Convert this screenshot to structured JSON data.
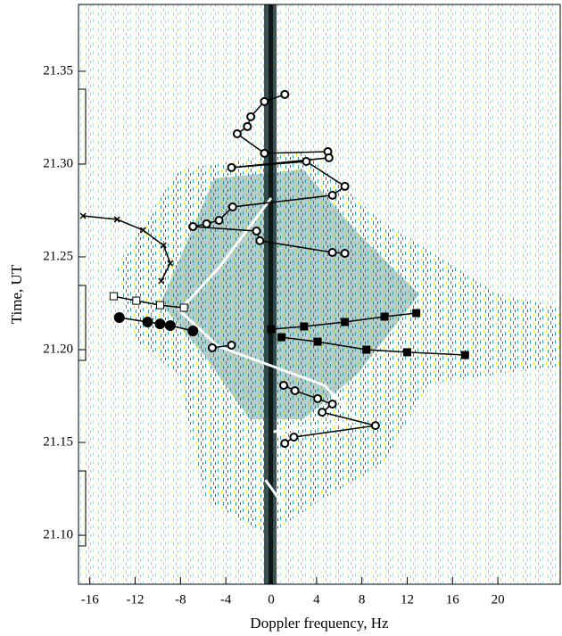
{
  "chart_data": {
    "type": "line",
    "xlabel": "Doppler frequency, Hz",
    "ylabel": "Time, UT",
    "xlim": [
      -17,
      25.5
    ],
    "ylim": [
      21.0736,
      21.386
    ],
    "xticks": [
      -16,
      -12,
      -8,
      -4,
      0,
      4,
      8,
      12,
      16,
      20
    ],
    "yticks": [
      {
        "value": 21.1,
        "label": "21.10"
      },
      21.15,
      {
        "value": 21.2,
        "label": "21.20"
      },
      21.25,
      {
        "value": 21.3,
        "label": "21.30"
      },
      21.35
    ],
    "series": [
      {
        "color": "#ffffff",
        "marker": "none",
        "width": 3,
        "x": [
          0,
          -4.6,
          -8.1,
          -4.7,
          4.7,
          7.6,
          0.2,
          null,
          -0.5,
          1.3
        ],
        "values": [
          21.2817,
          21.2442,
          21.2212,
          21.2019,
          21.1808,
          21.1615,
          21.1558,
          null,
          21.1298,
          21.1144
        ]
      },
      {
        "color": "#000000",
        "marker": "circle-open",
        "width": 1.5,
        "x": [
          1.2,
          -0.6,
          -1.8,
          -2.1,
          -3.0,
          -0.6,
          5.0,
          5.1,
          -3.5,
          3.1,
          6.5,
          5.4,
          -3.4,
          -4.6,
          -5.7,
          -6.9,
          -1.3,
          -1.0,
          5.4,
          6.5
        ],
        "values": [
          21.3375,
          21.3337,
          21.3255,
          21.3202,
          21.3163,
          21.3058,
          21.3067,
          21.3034,
          21.2981,
          21.3014,
          21.288,
          21.2832,
          21.2769,
          21.2697,
          21.2678,
          21.2663,
          21.2639,
          21.2587,
          21.2524,
          21.2519
        ]
      },
      {
        "color": "#000000",
        "marker": "circle-open",
        "width": 1.5,
        "x": [
          -5.2,
          -3.5,
          null,
          1.1,
          2.1,
          4.1,
          5.4,
          4.5,
          9.2,
          2.0,
          1.2
        ],
        "values": [
          21.201,
          21.2024,
          null,
          21.1808,
          21.1779,
          21.1736,
          21.1707,
          21.1663,
          21.1591,
          21.1529,
          21.1495
        ]
      },
      {
        "color": "#000000",
        "marker": "square-filled",
        "width": 1.5,
        "x": [
          0,
          2.9,
          6.5,
          10.0,
          12.8,
          null,
          0.9,
          4.1,
          8.4,
          12.0,
          17.1
        ],
        "values": [
          21.211,
          21.2125,
          21.2149,
          21.2178,
          21.2197,
          null,
          21.2067,
          21.2043,
          21.2,
          21.1986,
          21.1971
        ]
      },
      {
        "color": "#000000",
        "marker": "square-open",
        "width": 1.5,
        "x": [
          -13.9,
          -11.9,
          -9.8,
          -7.7
        ],
        "values": [
          21.2288,
          21.2264,
          21.224,
          21.2226
        ]
      },
      {
        "color": "#000000",
        "marker": "circle-filled",
        "width": 1.5,
        "x": [
          -13.4,
          -10.9,
          -9.8,
          -8.9,
          -6.9
        ],
        "values": [
          21.2173,
          21.2149,
          21.2139,
          21.213,
          21.2101
        ]
      },
      {
        "color": "#000000",
        "marker": "x",
        "width": 1.5,
        "x": [
          -16.6,
          -13.6,
          -11.3,
          -9.5,
          -8.9,
          -9.7
        ],
        "values": [
          21.2721,
          21.2702,
          21.2644,
          21.2562,
          21.2466,
          21.237
        ]
      }
    ]
  }
}
